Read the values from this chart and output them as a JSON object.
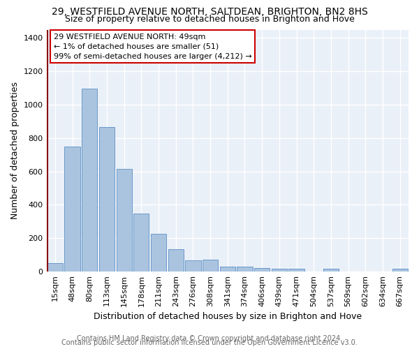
{
  "title1": "29, WESTFIELD AVENUE NORTH, SALTDEAN, BRIGHTON, BN2 8HS",
  "title2": "Size of property relative to detached houses in Brighton and Hove",
  "xlabel": "Distribution of detached houses by size in Brighton and Hove",
  "ylabel": "Number of detached properties",
  "footer1": "Contains HM Land Registry data © Crown copyright and database right 2024.",
  "footer2": "Contains public sector information licensed under the Open Government Licence v3.0.",
  "categories": [
    "15sqm",
    "48sqm",
    "80sqm",
    "113sqm",
    "145sqm",
    "178sqm",
    "211sqm",
    "243sqm",
    "276sqm",
    "308sqm",
    "341sqm",
    "374sqm",
    "406sqm",
    "439sqm",
    "471sqm",
    "504sqm",
    "537sqm",
    "569sqm",
    "602sqm",
    "634sqm",
    "667sqm"
  ],
  "values": [
    50,
    750,
    1095,
    865,
    615,
    345,
    225,
    135,
    65,
    70,
    30,
    30,
    20,
    15,
    15,
    0,
    15,
    0,
    0,
    0,
    15
  ],
  "bar_color": "#aac4e0",
  "bar_edge_color": "#5b8ec4",
  "annotation_box_text": "29 WESTFIELD AVENUE NORTH: 49sqm\n← 1% of detached houses are smaller (51)\n99% of semi-detached houses are larger (4,212) →",
  "vline_x_index": 0,
  "ylim": [
    0,
    1450
  ],
  "yticks": [
    0,
    200,
    400,
    600,
    800,
    1000,
    1200,
    1400
  ],
  "bg_color": "#eaf0f8",
  "grid_color": "#d0dae8",
  "title1_fontsize": 10,
  "title2_fontsize": 9,
  "xlabel_fontsize": 9,
  "ylabel_fontsize": 9,
  "tick_fontsize": 8,
  "footer_fontsize": 7
}
